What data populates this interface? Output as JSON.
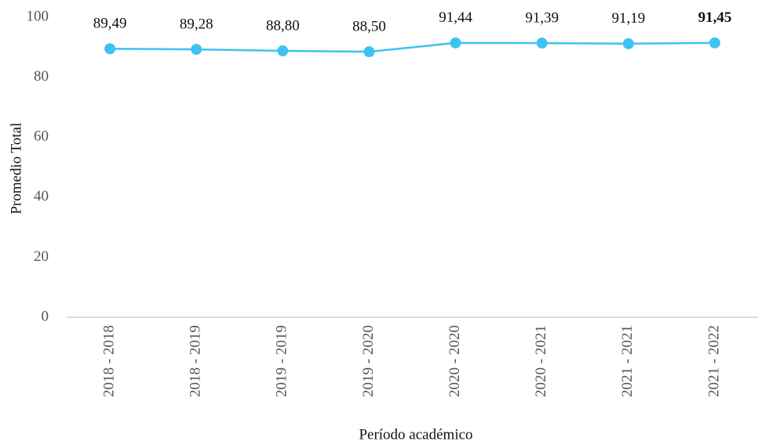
{
  "chart_data": {
    "type": "line",
    "x_label": "Período académico",
    "y_label": "Promedio Total",
    "categories": [
      "2018 - 2018",
      "2018 - 2019",
      "2019 - 2019",
      "2019 - 2020",
      "2020 - 2020",
      "2020 - 2021",
      "2021 - 2021",
      "2021 - 2022"
    ],
    "series": [
      {
        "name": "Promedio Total",
        "color": "#3ec3f0",
        "values": [
          89.49,
          89.28,
          88.8,
          88.5,
          91.44,
          91.39,
          91.19,
          91.45
        ],
        "value_labels": [
          "89,49",
          "89,28",
          "88,80",
          "88,50",
          "91,44",
          "91,39",
          "91,19",
          "91,45"
        ]
      }
    ],
    "bold_label_index": 7,
    "ylim": [
      0,
      100
    ],
    "yticks": [
      0,
      20,
      40,
      60,
      80,
      100
    ],
    "grid": false
  }
}
